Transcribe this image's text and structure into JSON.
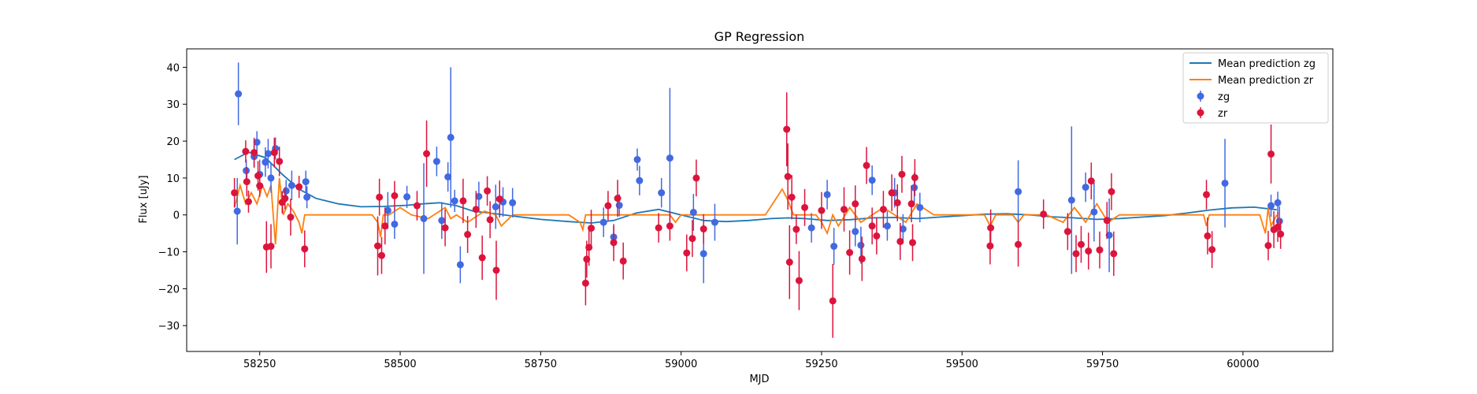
{
  "chart_data": {
    "type": "scatter",
    "title": "GP Regression",
    "xlabel": "MJD",
    "ylabel": "Flux [uJy]",
    "xlim": [
      58120,
      60160
    ],
    "ylim": [
      -37,
      45
    ],
    "xticks": [
      58250,
      58500,
      58750,
      59000,
      59250,
      59500,
      59750,
      60000
    ],
    "yticks": [
      -30,
      -20,
      -10,
      0,
      10,
      20,
      30,
      40
    ],
    "legend_position": "top-right",
    "legend": [
      "Mean prediction zg",
      "Mean prediction zr",
      "zg",
      "zr"
    ],
    "colors": {
      "zg_line": "#1f77b4",
      "zr_line": "#ff7f0e",
      "zg_points": "#4169e1",
      "zr_points": "#dc143c"
    },
    "series": [
      {
        "name": "Mean prediction zg",
        "kind": "line",
        "x": [
          58205,
          58230,
          58260,
          58290,
          58320,
          58350,
          58390,
          58430,
          58470,
          58510,
          58540,
          58570,
          58600,
          58630,
          58660,
          58700,
          58750,
          58800,
          58840,
          58880,
          58920,
          58960,
          59000,
          59040,
          59080,
          59120,
          59160,
          59190,
          59220,
          59260,
          59300,
          59340,
          59380,
          59420,
          59460,
          59500,
          59540,
          59580,
          59620,
          59660,
          59700,
          59740,
          59780,
          59820,
          59860,
          59900,
          59940,
          59980,
          60020,
          60060
        ],
        "y": [
          15,
          17,
          15.5,
          11,
          7,
          4.5,
          3,
          2.2,
          2.3,
          2.6,
          3,
          3.3,
          2.5,
          1,
          0.5,
          -0.3,
          -1.2,
          -1.8,
          -2.2,
          -1.5,
          0.5,
          1.5,
          0,
          -1.5,
          -1.8,
          -1.5,
          -1,
          -0.8,
          -1,
          -1.5,
          -1.3,
          -0.8,
          -0.7,
          -1,
          -0.6,
          -0.2,
          0.2,
          0.3,
          0,
          -0.5,
          -0.8,
          -1.2,
          -1,
          -0.6,
          -0.2,
          0.5,
          1.3,
          1.9,
          2.1,
          1.4
        ]
      },
      {
        "name": "Mean prediction zr",
        "kind": "line",
        "x": [
          58205,
          58215,
          58225,
          58235,
          58245,
          58255,
          58263,
          58270,
          58278,
          58285,
          58292,
          58300,
          58310,
          58320,
          58325,
          58330,
          58340,
          58360,
          58400,
          58450,
          58460,
          58465,
          58470,
          58480,
          58500,
          58520,
          58550,
          58580,
          58590,
          58600,
          58620,
          58650,
          58670,
          58680,
          58700,
          58750,
          58800,
          58820,
          58825,
          58830,
          58850,
          58880,
          58900,
          58950,
          58980,
          58990,
          59000,
          59050,
          59100,
          59150,
          59180,
          59190,
          59200,
          59220,
          59240,
          59250,
          59260,
          59270,
          59280,
          59300,
          59320,
          59340,
          59360,
          59400,
          59420,
          59450,
          59500,
          59540,
          59550,
          59560,
          59590,
          59600,
          59610,
          59650,
          59680,
          59700,
          59720,
          59740,
          59760,
          59780,
          59800,
          59850,
          59900,
          59930,
          59935,
          59940,
          59960,
          59980,
          60000,
          60030,
          60040,
          60045,
          60050,
          60060
        ],
        "y": [
          2,
          8,
          3,
          6,
          3,
          8,
          5,
          8,
          -8,
          10,
          0,
          3,
          1,
          -2,
          -5,
          0,
          0,
          0,
          0,
          0,
          -2,
          -6,
          0,
          0,
          2,
          0,
          -1,
          2,
          -1,
          0,
          -2,
          1,
          0,
          -3,
          0,
          0,
          0,
          -2,
          -4,
          0,
          0,
          0,
          0,
          0,
          0,
          -2,
          0,
          0,
          0,
          0,
          7,
          4,
          0,
          0,
          0,
          -2,
          -5,
          0,
          -3,
          2,
          -2,
          0,
          2,
          -2,
          3,
          0,
          0,
          0,
          -3,
          0,
          0,
          -2,
          0,
          0,
          -2,
          2,
          -2,
          3,
          -2,
          0,
          0,
          0,
          0,
          0,
          -3,
          0,
          0,
          0,
          0,
          0,
          -5,
          2,
          -3,
          0
        ]
      },
      {
        "name": "zg",
        "kind": "errorbar",
        "points": [
          [
            58210,
            1,
            9
          ],
          [
            58212,
            32.8,
            8.5
          ],
          [
            58226,
            12,
            3
          ],
          [
            58240,
            15.8,
            3
          ],
          [
            58245,
            19.7,
            3
          ],
          [
            58250,
            11,
            4
          ],
          [
            58260,
            14.3,
            4
          ],
          [
            58265,
            16.6,
            4
          ],
          [
            58270,
            10,
            4
          ],
          [
            58278,
            18,
            3
          ],
          [
            58297,
            6.5,
            3
          ],
          [
            58307,
            8,
            4
          ],
          [
            58332,
            9,
            3
          ],
          [
            58334,
            4.8,
            3
          ],
          [
            58478,
            1.2,
            5
          ],
          [
            58490,
            -2.5,
            4
          ],
          [
            58512,
            4.9,
            3
          ],
          [
            58542,
            -1,
            15
          ],
          [
            58565,
            14.5,
            4
          ],
          [
            58574,
            -1.5,
            5
          ],
          [
            58585,
            10.3,
            4
          ],
          [
            58590,
            21,
            19
          ],
          [
            58597,
            3.8,
            3
          ],
          [
            58607,
            -13.5,
            5
          ],
          [
            58640,
            5,
            4
          ],
          [
            58670,
            2.2,
            6
          ],
          [
            58683,
            3.5,
            4
          ],
          [
            58700,
            3.3,
            4
          ],
          [
            58862,
            -2,
            4
          ],
          [
            58880,
            -6,
            3
          ],
          [
            58890,
            2.6,
            3
          ],
          [
            58922,
            15,
            3
          ],
          [
            58926,
            9.3,
            4
          ],
          [
            58965,
            6,
            4
          ],
          [
            58980,
            15.4,
            19
          ],
          [
            59022,
            0.7,
            5
          ],
          [
            59040,
            -10.5,
            8
          ],
          [
            59060,
            -2,
            5
          ],
          [
            59232,
            -3.5,
            4
          ],
          [
            59260,
            5.5,
            4
          ],
          [
            59272,
            -8.5,
            5
          ],
          [
            59310,
            -4.5,
            4
          ],
          [
            59320,
            -8.2,
            5
          ],
          [
            59340,
            9.4,
            4
          ],
          [
            59367,
            -3,
            4
          ],
          [
            59380,
            6,
            4
          ],
          [
            59395,
            -3.8,
            4
          ],
          [
            59415,
            7.4,
            4
          ],
          [
            59425,
            2,
            4
          ],
          [
            59600,
            6.3,
            8.5
          ],
          [
            59695,
            4,
            20
          ],
          [
            59720,
            7.5,
            4
          ],
          [
            59735,
            0.8,
            8
          ],
          [
            59762,
            -5.5,
            10
          ],
          [
            60062,
            3.3,
            3
          ],
          [
            60065,
            -1.7,
            4
          ],
          [
            59968,
            8.6,
            12
          ],
          [
            60050,
            2.5,
            3
          ]
        ]
      },
      {
        "name": "zr",
        "kind": "errorbar",
        "points": [
          [
            58205,
            6,
            4
          ],
          [
            58225,
            17.2,
            3
          ],
          [
            58227,
            9,
            4
          ],
          [
            58230,
            3.6,
            3
          ],
          [
            58240,
            16.9,
            4
          ],
          [
            58247,
            10.6,
            4
          ],
          [
            58250,
            7.9,
            3
          ],
          [
            58262,
            -8.7,
            7
          ],
          [
            58270,
            -8.5,
            6
          ],
          [
            58276,
            16.9,
            4
          ],
          [
            58285,
            14.5,
            4
          ],
          [
            58290,
            3.4,
            3
          ],
          [
            58295,
            4.5,
            3
          ],
          [
            58305,
            -0.6,
            5
          ],
          [
            58320,
            7.6,
            3
          ],
          [
            58330,
            -9.2,
            5
          ],
          [
            58460,
            -8.4,
            8
          ],
          [
            58463,
            4.8,
            5
          ],
          [
            58467,
            -11,
            5
          ],
          [
            58473,
            -3,
            5
          ],
          [
            58490,
            5.2,
            4
          ],
          [
            58530,
            2.5,
            4
          ],
          [
            58547,
            16.6,
            9
          ],
          [
            58580,
            -3.5,
            5
          ],
          [
            58612,
            3.8,
            6
          ],
          [
            58620,
            -5.3,
            5
          ],
          [
            58635,
            1.5,
            5
          ],
          [
            58646,
            -11.6,
            6
          ],
          [
            58655,
            6.5,
            4
          ],
          [
            58660,
            -1.3,
            5
          ],
          [
            58671,
            -15,
            8
          ],
          [
            58677,
            4.3,
            5
          ],
          [
            58830,
            -18.5,
            6
          ],
          [
            58832,
            -12,
            5
          ],
          [
            58836,
            -8.8,
            5
          ],
          [
            58840,
            -3.6,
            5
          ],
          [
            58870,
            2.5,
            4
          ],
          [
            58880,
            -7.5,
            5
          ],
          [
            58887,
            4.5,
            5
          ],
          [
            58897,
            -12.5,
            5
          ],
          [
            58960,
            -3.5,
            4
          ],
          [
            58980,
            -3,
            4
          ],
          [
            59010,
            -10.3,
            5
          ],
          [
            59020,
            -6.4,
            5
          ],
          [
            59027,
            10,
            5
          ],
          [
            59040,
            -3.8,
            4
          ],
          [
            59188,
            23.2,
            10
          ],
          [
            59190,
            10.4,
            9
          ],
          [
            59193,
            -12.8,
            10
          ],
          [
            59197,
            4.8,
            6
          ],
          [
            59205,
            -3.9,
            4
          ],
          [
            59210,
            -17.8,
            8
          ],
          [
            59220,
            2,
            5
          ],
          [
            59250,
            1.2,
            5
          ],
          [
            59270,
            -23.3,
            10
          ],
          [
            59290,
            1.5,
            6
          ],
          [
            59300,
            -10.2,
            6
          ],
          [
            59310,
            3,
            5
          ],
          [
            59322,
            -11.9,
            6
          ],
          [
            59330,
            13.4,
            5
          ],
          [
            59340,
            -3,
            5
          ],
          [
            59348,
            -5.7,
            5
          ],
          [
            59360,
            1.5,
            5
          ],
          [
            59375,
            6,
            5
          ],
          [
            59385,
            3.3,
            5
          ],
          [
            59390,
            -7.2,
            5
          ],
          [
            59393,
            11,
            5
          ],
          [
            59410,
            3,
            5
          ],
          [
            59412,
            -7.5,
            5
          ],
          [
            59416,
            10.1,
            5
          ],
          [
            59550,
            -8.4,
            5
          ],
          [
            59551,
            -3.5,
            5
          ],
          [
            59600,
            -8,
            6
          ],
          [
            59645,
            0.2,
            4
          ],
          [
            59688,
            -4.5,
            5
          ],
          [
            59703,
            -10.5,
            5
          ],
          [
            59712,
            -8,
            5
          ],
          [
            59725,
            -9.8,
            5
          ],
          [
            59730,
            9.2,
            5
          ],
          [
            59745,
            -9.5,
            5
          ],
          [
            59758,
            -1.5,
            5
          ],
          [
            59766,
            6.3,
            5
          ],
          [
            59770,
            -10.5,
            6
          ],
          [
            59935,
            5.5,
            4
          ],
          [
            59937,
            -5.7,
            5
          ],
          [
            59945,
            -9.4,
            5
          ],
          [
            60045,
            -8.3,
            4
          ],
          [
            60050,
            16.5,
            8
          ],
          [
            60055,
            -4,
            5
          ],
          [
            60062,
            -3.3,
            4
          ],
          [
            60067,
            -5.2,
            4
          ]
        ]
      }
    ]
  }
}
